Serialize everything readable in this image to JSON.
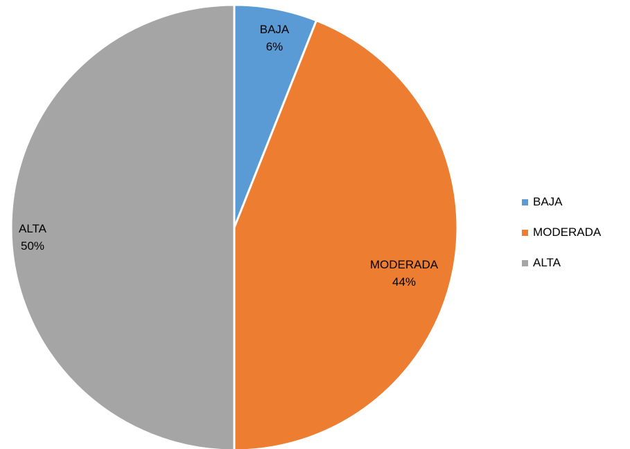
{
  "chart_data": {
    "type": "pie",
    "title": "",
    "categories": [
      "BAJA",
      "MODERADA",
      "ALTA"
    ],
    "values": [
      6,
      44,
      50
    ],
    "value_labels": [
      "6%",
      "44%",
      "50%"
    ],
    "colors": [
      "#5b9bd5",
      "#ed7d31",
      "#a5a5a5"
    ],
    "start_angle_deg": 0,
    "direction": "clockwise",
    "legend_position": "right"
  }
}
